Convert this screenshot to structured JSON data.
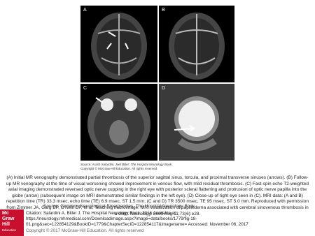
{
  "figure": {
    "panels": [
      {
        "label": "A"
      },
      {
        "label": "B"
      },
      {
        "label": "C"
      },
      {
        "label": "D"
      }
    ],
    "image_source": "Source: Arash Salardini, Joel Biller: The Hospital Neurology Book",
    "image_copyright": "Copyright © McGraw-Hill Education. All rights reserved."
  },
  "caption": "(A) Initial MR venography demonstrated partial thrombosis of the superior sagittal sinus, torcula, and proximal transverse sinuses (arrows). (B) Follow-up MR venography at the time of visual worsening showed improvement in venous flow, with mild residual thrombosis. (C) Fast-spin echo T2-weighted axial imaging demonstrated reversed optic nerve cupping in the right eye with posterior scleral flattening and protrusion of optic nerve papilla into the globe (arrow) (subsequent image on MRI demonstrated similar findings in the left eye). (D) Close-up of right eye seen in (C). MRI data: (A and B) repetition time (TR) 33.3 msec, echo time (TE) 6.9 msec, ST 1.5 mm; (C and D) TR 3500 msec, TE 95 msec, ST 5.0 mm. Reproduced with permission from Zimmer JA, Garg BP, O'Neill DP, et al. Teaching neuroimage: MRI visualization of papilledema associated with cerebral sinovenous thrombosis in a child. Neurology. 2009 Aug 11;73(6):e28.",
  "source_line": "Source: Common Neurological Emergencies, The Hospital Neurology Book",
  "logo": {
    "lines": [
      "Mc",
      "Graw",
      "Hill",
      "Education"
    ]
  },
  "citation": {
    "lines": [
      "Citation: Salardini A, Biller J. The Hospital Neurology Book; 2016 Available at:",
      "https://neurology.mhmedical.com/Downloadimage.aspx?image=data/books/1779/fig-18-",
      "01.png&sec=122854129&BookID=1779&ChapterSecID=122854117&imagename= Accessed: November 06, 2017"
    ],
    "copyright": "Copyright © 2017 McGraw-Hill Education. All rights reserved"
  }
}
